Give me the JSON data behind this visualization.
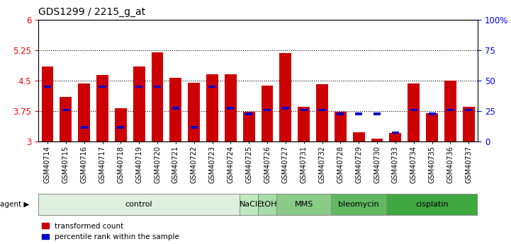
{
  "title": "GDS1299 / 2215_g_at",
  "samples": [
    "GSM40714",
    "GSM40715",
    "GSM40716",
    "GSM40717",
    "GSM40718",
    "GSM40719",
    "GSM40720",
    "GSM40721",
    "GSM40722",
    "GSM40723",
    "GSM40724",
    "GSM40725",
    "GSM40726",
    "GSM40727",
    "GSM40731",
    "GSM40732",
    "GSM40728",
    "GSM40729",
    "GSM40730",
    "GSM40733",
    "GSM40734",
    "GSM40735",
    "GSM40736",
    "GSM40737"
  ],
  "red_values": [
    4.85,
    4.1,
    4.43,
    4.63,
    3.82,
    4.85,
    5.2,
    4.57,
    4.45,
    4.65,
    4.65,
    3.73,
    4.38,
    5.18,
    3.85,
    4.41,
    3.73,
    3.22,
    3.08,
    3.21,
    4.42,
    3.7,
    4.5,
    3.85
  ],
  "blue_values": [
    4.35,
    3.78,
    3.35,
    4.35,
    3.35,
    4.35,
    4.35,
    3.82,
    3.35,
    4.35,
    3.82,
    3.68,
    3.78,
    3.82,
    3.78,
    3.78,
    3.68,
    3.68,
    3.68,
    3.22,
    3.78,
    3.68,
    3.78,
    3.78
  ],
  "agents": [
    {
      "label": "control",
      "start": 0,
      "end": 11,
      "color": "#e0f0e0"
    },
    {
      "label": "NaCl",
      "start": 11,
      "end": 12,
      "color": "#c0e8c0"
    },
    {
      "label": "EtOH",
      "start": 12,
      "end": 13,
      "color": "#a8dca8"
    },
    {
      "label": "MMS",
      "start": 13,
      "end": 16,
      "color": "#88cc88"
    },
    {
      "label": "bleomycin",
      "start": 16,
      "end": 19,
      "color": "#60b860"
    },
    {
      "label": "cisplatin",
      "start": 19,
      "end": 24,
      "color": "#40a840"
    }
  ],
  "ylim_left": [
    3.0,
    6.0
  ],
  "yticks_left": [
    3.0,
    3.75,
    4.5,
    5.25,
    6.0
  ],
  "yticks_right_vals": [
    0,
    25,
    50,
    75,
    100
  ],
  "yticks_right_labels": [
    "0",
    "25",
    "50",
    "75",
    "100%"
  ],
  "bar_color": "#cc0000",
  "blue_color": "#0000cc",
  "bar_width": 0.65,
  "background_color": "#ffffff",
  "plot_bg_color": "#ffffff",
  "title_fontsize": 10,
  "tick_fontsize": 7,
  "agent_label_fontsize": 8
}
